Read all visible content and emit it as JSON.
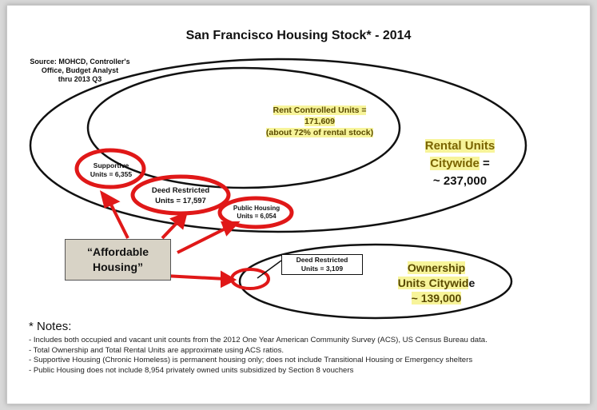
{
  "title": "San Francisco Housing Stock* - 2014",
  "source_lines": [
    "Source: MOHCD, Controller's",
    "Office, Budget Analyst",
    "thru 2013 Q3"
  ],
  "rent_controlled": [
    "Rent Controlled Units =",
    "171,609",
    "(about 72% of rental stock)"
  ],
  "rental_citywide": {
    "line1": "Rental Units",
    "line2a": "Citywide",
    "line2b": " =",
    "line3": "~ 237,000"
  },
  "supportive": [
    "Supportive",
    "Units = 6,355"
  ],
  "deed_restricted_rental": [
    "Deed Restricted",
    "Units = 17,597"
  ],
  "public_housing": [
    "Public Housing",
    "Units = 6,054"
  ],
  "affordable_housing": [
    "“Affordable",
    "Housing”"
  ],
  "deed_restricted_ownership": [
    "Deed Restricted",
    "Units = 3,109"
  ],
  "ownership": {
    "line1": "Ownership",
    "line2a": "Units Citywid",
    "line2b": "e",
    "line3": "~ 139,000"
  },
  "notes_heading": "* Notes:",
  "notes": [
    "- Includes both occupied and vacant unit counts from the 2012 One Year American Community Survey (ACS), US Census Bureau data.",
    "- Total Ownership and Total Rental Units are approximate using ACS ratios.",
    "- Supportive Housing (Chronic Homeless) is permanent housing only; does not include Transitional Housing or Emergency shelters",
    "- Public Housing does not include 8,954 privately owned units subsidized by Section 8 vouchers"
  ],
  "colors": {
    "highlight": "#f7f49a",
    "annotation_red": "#e01818",
    "box_fill": "#d8d3c6"
  }
}
